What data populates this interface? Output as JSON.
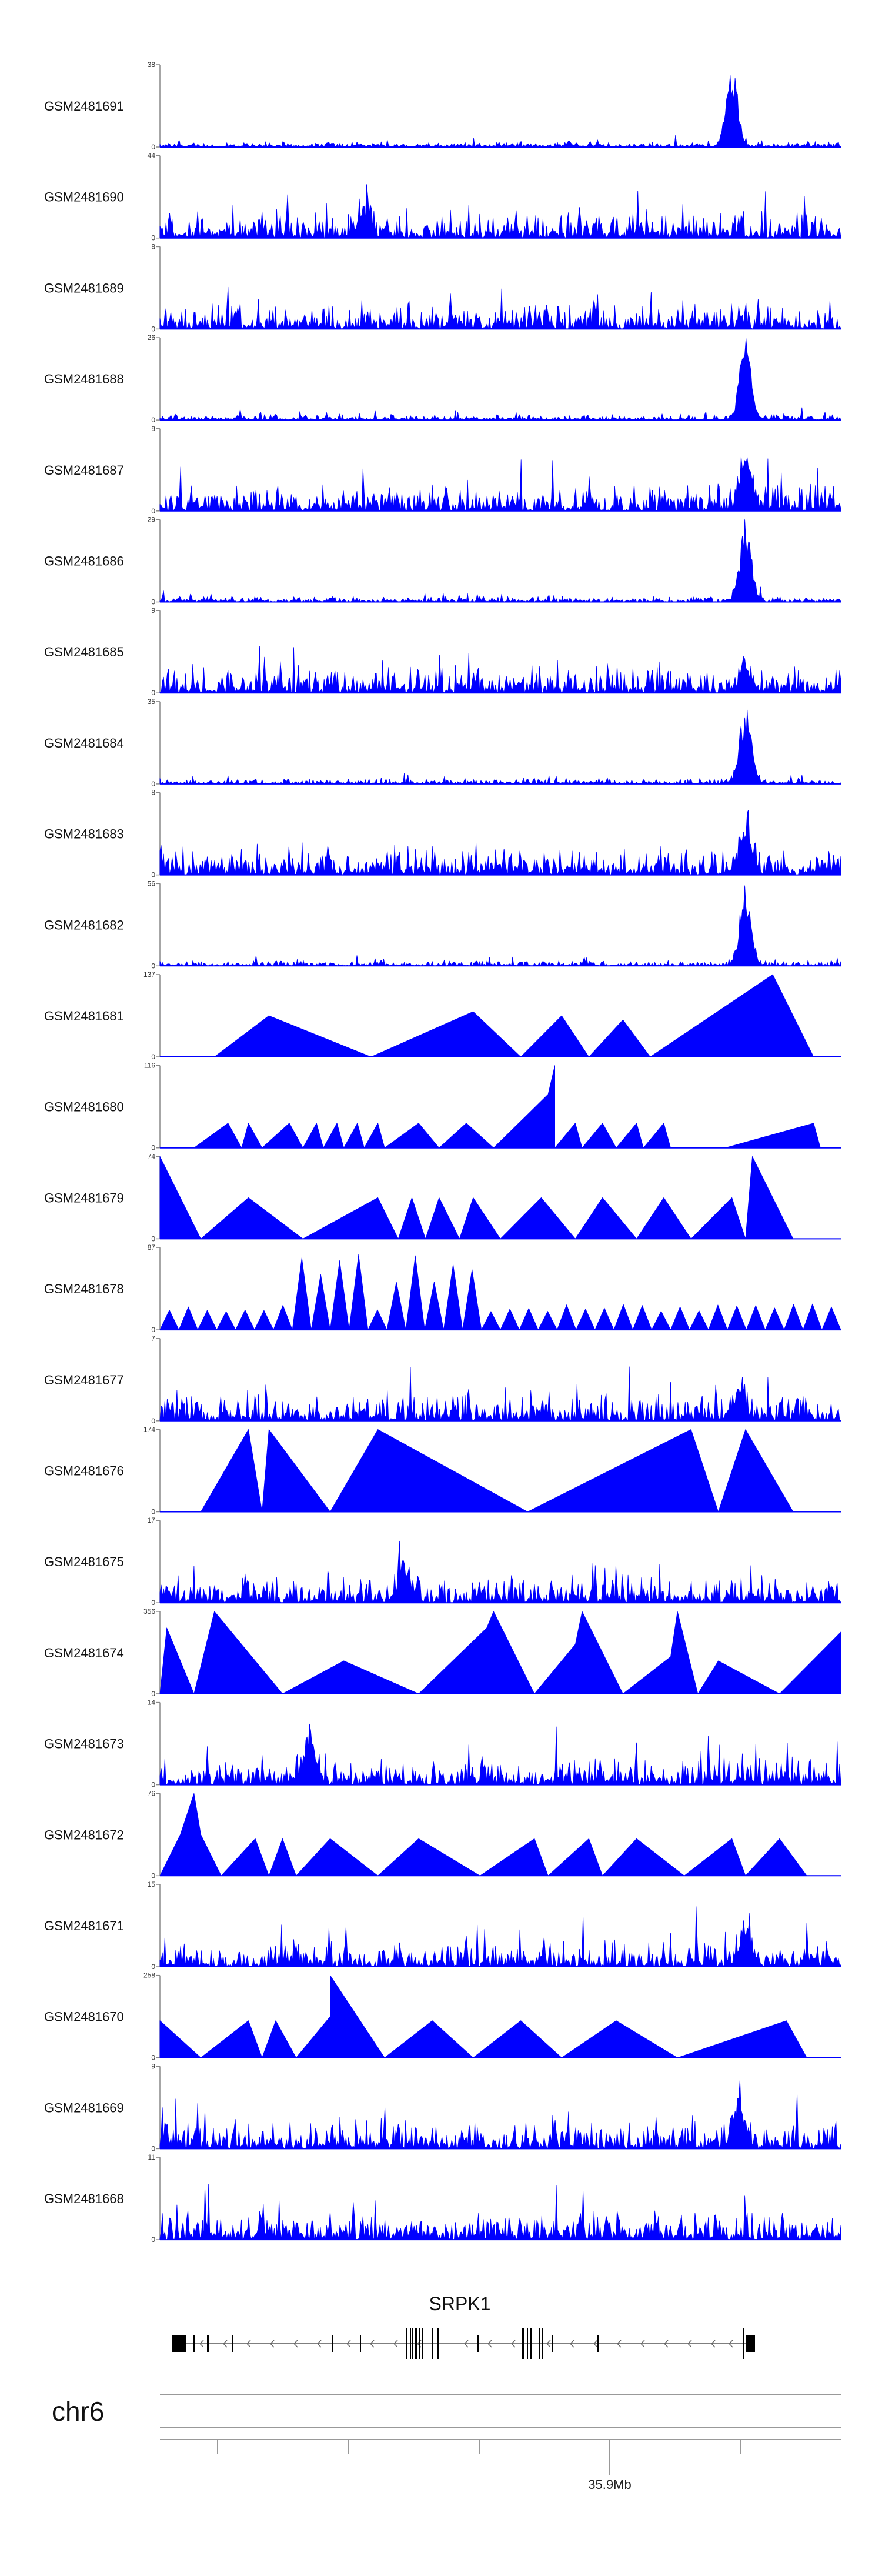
{
  "chart_data": {
    "type": "area",
    "title": "",
    "color": "#0000ff",
    "chromosome": "chr6",
    "gene": "SRPK1",
    "xaxis": {
      "tick_label": "35.9Mb"
    },
    "tracks": [
      {
        "name": "GSM2481691",
        "ymax": "38",
        "ymin": "0",
        "style": "noise",
        "peak": 0.84,
        "peak_strength": 1.0
      },
      {
        "name": "GSM2481690",
        "ymax": "44",
        "ymin": "0",
        "style": "noise",
        "peak": 0.3,
        "peak_strength": 0.4
      },
      {
        "name": "GSM2481689",
        "ymax": "8",
        "ymin": "0",
        "style": "noise",
        "peak": 0.1,
        "peak_strength": 0.0
      },
      {
        "name": "GSM2481688",
        "ymax": "26",
        "ymin": "0",
        "style": "noise",
        "peak": 0.86,
        "peak_strength": 1.0
      },
      {
        "name": "GSM2481687",
        "ymax": "9",
        "ymin": "0",
        "style": "noise",
        "peak": 0.86,
        "peak_strength": 0.6
      },
      {
        "name": "GSM2481686",
        "ymax": "29",
        "ymin": "0",
        "style": "noise",
        "peak": 0.86,
        "peak_strength": 1.0
      },
      {
        "name": "GSM2481685",
        "ymax": "9",
        "ymin": "0",
        "style": "noise",
        "peak": 0.86,
        "peak_strength": 0.3
      },
      {
        "name": "GSM2481684",
        "ymax": "35",
        "ymin": "0",
        "style": "noise",
        "peak": 0.86,
        "peak_strength": 1.0
      },
      {
        "name": "GSM2481683",
        "ymax": "8",
        "ymin": "0",
        "style": "noise",
        "peak": 0.86,
        "peak_strength": 0.6
      },
      {
        "name": "GSM2481682",
        "ymax": "56",
        "ymin": "0",
        "style": "noise",
        "peak": 0.86,
        "peak_strength": 1.0
      },
      {
        "name": "GSM2481681",
        "ymax": "137",
        "ymin": "0",
        "style": "tri",
        "pts": [
          [
            0.08,
            0
          ],
          [
            0.16,
            0.5
          ],
          [
            0.31,
            0
          ],
          [
            0.46,
            0.55
          ],
          [
            0.53,
            0
          ],
          [
            0.59,
            0.5
          ],
          [
            0.63,
            0
          ],
          [
            0.68,
            0.45
          ],
          [
            0.72,
            0
          ],
          [
            0.9,
            1.0
          ],
          [
            0.96,
            0
          ]
        ]
      },
      {
        "name": "GSM2481680",
        "ymax": "116",
        "ymin": "0",
        "style": "tri",
        "pts": [
          [
            0.05,
            0
          ],
          [
            0.1,
            0.3
          ],
          [
            0.12,
            0
          ],
          [
            0.13,
            0.3
          ],
          [
            0.15,
            0
          ],
          [
            0.19,
            0.3
          ],
          [
            0.21,
            0
          ],
          [
            0.23,
            0.3
          ],
          [
            0.24,
            0
          ],
          [
            0.26,
            0.3
          ],
          [
            0.27,
            0
          ],
          [
            0.29,
            0.3
          ],
          [
            0.3,
            0
          ],
          [
            0.32,
            0.3
          ],
          [
            0.33,
            0
          ],
          [
            0.38,
            0.3
          ],
          [
            0.41,
            0
          ],
          [
            0.45,
            0.3
          ],
          [
            0.49,
            0
          ],
          [
            0.57,
            0.65
          ],
          [
            0.58,
            1.0
          ],
          [
            0.58,
            0
          ],
          [
            0.61,
            0.3
          ],
          [
            0.62,
            0
          ],
          [
            0.65,
            0.3
          ],
          [
            0.67,
            0
          ],
          [
            0.7,
            0.3
          ],
          [
            0.71,
            0
          ],
          [
            0.74,
            0.3
          ],
          [
            0.75,
            0
          ],
          [
            0.83,
            0
          ],
          [
            0.96,
            0.3
          ],
          [
            0.97,
            0
          ]
        ]
      },
      {
        "name": "GSM2481679",
        "ymax": "74",
        "ymin": "0",
        "style": "tri",
        "pts": [
          [
            0.0,
            1.0
          ],
          [
            0.06,
            0
          ],
          [
            0.13,
            0.5
          ],
          [
            0.21,
            0
          ],
          [
            0.32,
            0.5
          ],
          [
            0.35,
            0
          ],
          [
            0.37,
            0.5
          ],
          [
            0.39,
            0
          ],
          [
            0.41,
            0.5
          ],
          [
            0.44,
            0
          ],
          [
            0.46,
            0.5
          ],
          [
            0.5,
            0
          ],
          [
            0.56,
            0.5
          ],
          [
            0.61,
            0
          ],
          [
            0.65,
            0.5
          ],
          [
            0.7,
            0
          ],
          [
            0.74,
            0.5
          ],
          [
            0.78,
            0
          ],
          [
            0.84,
            0.5
          ],
          [
            0.86,
            0
          ],
          [
            0.87,
            1.0
          ],
          [
            0.93,
            0
          ]
        ]
      },
      {
        "name": "GSM2481678",
        "ymax": "87",
        "ymin": "0",
        "style": "spikes",
        "count": 36,
        "big": [
          0.23,
          0.25,
          0.28,
          0.35,
          0.43
        ]
      },
      {
        "name": "GSM2481677",
        "ymax": "7",
        "ymin": "0",
        "style": "noise",
        "peak": 0.85,
        "peak_strength": 0.4
      },
      {
        "name": "GSM2481676",
        "ymax": "174",
        "ymin": "0",
        "style": "tri",
        "pts": [
          [
            0.06,
            0
          ],
          [
            0.13,
            1.0
          ],
          [
            0.15,
            0
          ],
          [
            0.16,
            1.0
          ],
          [
            0.25,
            0
          ],
          [
            0.32,
            1.0
          ],
          [
            0.54,
            0
          ],
          [
            0.78,
            1.0
          ],
          [
            0.82,
            0
          ],
          [
            0.86,
            1.0
          ],
          [
            0.93,
            0
          ]
        ]
      },
      {
        "name": "GSM2481675",
        "ymax": "17",
        "ymin": "0",
        "style": "noise",
        "peak": 0.36,
        "peak_strength": 0.5
      },
      {
        "name": "GSM2481674",
        "ymax": "356",
        "ymin": "0",
        "style": "tri",
        "pts": [
          [
            0.0,
            0
          ],
          [
            0.01,
            0.8
          ],
          [
            0.05,
            0
          ],
          [
            0.08,
            1.0
          ],
          [
            0.18,
            0
          ],
          [
            0.27,
            0.4
          ],
          [
            0.38,
            0
          ],
          [
            0.48,
            0.8
          ],
          [
            0.49,
            1.0
          ],
          [
            0.55,
            0
          ],
          [
            0.61,
            0.6
          ],
          [
            0.62,
            1.0
          ],
          [
            0.68,
            0
          ],
          [
            0.75,
            0.45
          ],
          [
            0.76,
            1.0
          ],
          [
            0.79,
            0
          ],
          [
            0.82,
            0.4
          ],
          [
            0.91,
            0
          ],
          [
            1.0,
            0.75
          ]
        ]
      },
      {
        "name": "GSM2481673",
        "ymax": "14",
        "ymin": "0",
        "style": "noise",
        "peak": 0.22,
        "peak_strength": 0.6
      },
      {
        "name": "GSM2481672",
        "ymax": "76",
        "ymin": "0",
        "style": "tri",
        "pts": [
          [
            0.0,
            0
          ],
          [
            0.03,
            0.5
          ],
          [
            0.05,
            1.0
          ],
          [
            0.06,
            0.5
          ],
          [
            0.09,
            0
          ],
          [
            0.14,
            0.45
          ],
          [
            0.16,
            0
          ],
          [
            0.18,
            0.45
          ],
          [
            0.2,
            0
          ],
          [
            0.25,
            0.45
          ],
          [
            0.32,
            0
          ],
          [
            0.38,
            0.45
          ],
          [
            0.47,
            0
          ],
          [
            0.55,
            0.45
          ],
          [
            0.57,
            0
          ],
          [
            0.63,
            0.45
          ],
          [
            0.65,
            0
          ],
          [
            0.7,
            0.45
          ],
          [
            0.77,
            0
          ],
          [
            0.84,
            0.45
          ],
          [
            0.86,
            0
          ],
          [
            0.91,
            0.45
          ],
          [
            0.95,
            0
          ]
        ]
      },
      {
        "name": "GSM2481671",
        "ymax": "15",
        "ymin": "0",
        "style": "noise",
        "peak": 0.86,
        "peak_strength": 0.5
      },
      {
        "name": "GSM2481670",
        "ymax": "258",
        "ymin": "0",
        "style": "tri",
        "pts": [
          [
            0.0,
            0.45
          ],
          [
            0.06,
            0
          ],
          [
            0.13,
            0.45
          ],
          [
            0.15,
            0
          ],
          [
            0.17,
            0.45
          ],
          [
            0.2,
            0
          ],
          [
            0.25,
            0.5
          ],
          [
            0.25,
            1.0
          ],
          [
            0.33,
            0
          ],
          [
            0.4,
            0.45
          ],
          [
            0.46,
            0
          ],
          [
            0.53,
            0.45
          ],
          [
            0.59,
            0
          ],
          [
            0.67,
            0.45
          ],
          [
            0.76,
            0
          ],
          [
            0.92,
            0.45
          ],
          [
            0.95,
            0
          ]
        ]
      },
      {
        "name": "GSM2481669",
        "ymax": "9",
        "ymin": "0",
        "style": "noise",
        "peak": 0.85,
        "peak_strength": 0.7
      },
      {
        "name": "GSM2481668",
        "ymax": "11",
        "ymin": "0",
        "style": "noise",
        "peak": 0.1,
        "peak_strength": 0.0
      }
    ]
  }
}
